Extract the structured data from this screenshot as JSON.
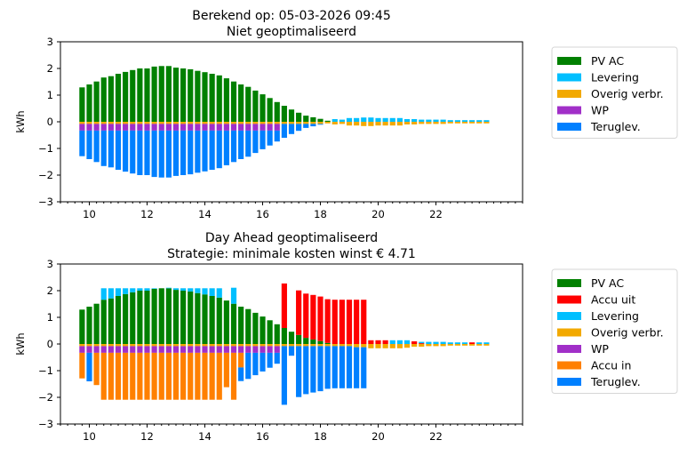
{
  "colors": {
    "PV AC": "#008000",
    "Accu uit": "#ff0000",
    "Levering": "#00bfff",
    "Overig verbr.": "#f2a900",
    "WP": "#a12fc8",
    "Accu in": "#ff8000",
    "Teruglev.": "#0080ff"
  },
  "chart_data": [
    {
      "type": "bar",
      "stacked": true,
      "title": "Berekend op: 05-03-2026 09:45",
      "subtitle": "Niet geoptimaliseerd",
      "xlabel": "",
      "ylabel": "kWh",
      "xlim": [
        9,
        25
      ],
      "ylim": [
        -3,
        3
      ],
      "xticks": [
        10,
        12,
        14,
        16,
        18,
        20,
        22
      ],
      "yticks": [
        -3,
        -2,
        -1,
        0,
        1,
        2,
        3
      ],
      "grid": false,
      "legend_placement": "outside-right-top",
      "x": [
        9.75,
        10,
        10.25,
        10.5,
        10.75,
        11,
        11.25,
        11.5,
        11.75,
        12,
        12.25,
        12.5,
        12.75,
        13,
        13.25,
        13.5,
        13.75,
        14,
        14.25,
        14.5,
        14.75,
        15,
        15.25,
        15.5,
        15.75,
        16,
        16.25,
        16.5,
        16.75,
        17,
        17.25,
        17.5,
        17.75,
        18,
        18.25,
        18.5,
        18.75,
        19,
        19.25,
        19.5,
        19.75,
        20,
        20.25,
        20.5,
        20.75,
        21,
        21.25,
        21.5,
        21.75,
        22,
        22.25,
        22.5,
        22.75,
        23,
        23.25,
        23.5,
        23.75
      ],
      "series": [
        {
          "name": "PV AC",
          "values": [
            1.29,
            1.4,
            1.51,
            1.66,
            1.71,
            1.8,
            1.87,
            1.94,
            2.0,
            2.0,
            2.07,
            2.09,
            2.09,
            2.03,
            2.0,
            1.97,
            1.91,
            1.86,
            1.8,
            1.74,
            1.63,
            1.51,
            1.4,
            1.31,
            1.17,
            1.03,
            0.89,
            0.74,
            0.6,
            0.46,
            0.34,
            0.23,
            0.17,
            0.11,
            0.04,
            0,
            0,
            0,
            0,
            0,
            0,
            0,
            0,
            0,
            0,
            0,
            0,
            0,
            0,
            0,
            0,
            0,
            0,
            0,
            0,
            0,
            0
          ]
        },
        {
          "name": "Levering",
          "values": [
            0,
            0,
            0,
            0,
            0,
            0,
            0,
            0,
            0,
            0,
            0,
            0,
            0,
            0,
            0,
            0,
            0,
            0,
            0,
            0,
            0,
            0,
            0,
            0,
            0,
            0,
            0,
            0,
            0,
            0,
            0,
            0,
            0,
            0,
            0,
            0.1,
            0.08,
            0.14,
            0.14,
            0.16,
            0.16,
            0.14,
            0.14,
            0.14,
            0.14,
            0.1,
            0.1,
            0.08,
            0.08,
            0.08,
            0.08,
            0.06,
            0.06,
            0.06,
            0.06,
            0.06,
            0.06
          ]
        },
        {
          "name": "Overig verbr.",
          "values": [
            -0.08,
            -0.08,
            -0.08,
            -0.08,
            -0.08,
            -0.08,
            -0.08,
            -0.08,
            -0.08,
            -0.08,
            -0.08,
            -0.08,
            -0.08,
            -0.08,
            -0.08,
            -0.08,
            -0.08,
            -0.08,
            -0.08,
            -0.08,
            -0.08,
            -0.08,
            -0.08,
            -0.08,
            -0.08,
            -0.08,
            -0.08,
            -0.08,
            -0.08,
            -0.08,
            -0.08,
            -0.08,
            -0.08,
            -0.08,
            -0.06,
            -0.1,
            -0.08,
            -0.14,
            -0.14,
            -0.16,
            -0.16,
            -0.14,
            -0.14,
            -0.14,
            -0.14,
            -0.1,
            -0.1,
            -0.08,
            -0.08,
            -0.08,
            -0.08,
            -0.06,
            -0.06,
            -0.06,
            -0.06,
            -0.06,
            -0.06
          ]
        },
        {
          "name": "WP",
          "values": [
            -0.25,
            -0.25,
            -0.25,
            -0.25,
            -0.25,
            -0.25,
            -0.25,
            -0.25,
            -0.25,
            -0.25,
            -0.25,
            -0.25,
            -0.25,
            -0.25,
            -0.25,
            -0.25,
            -0.25,
            -0.25,
            -0.25,
            -0.25,
            -0.25,
            -0.25,
            -0.25,
            -0.25,
            -0.25,
            -0.25,
            -0.25,
            -0.25,
            0,
            0,
            0,
            0,
            0,
            0,
            0,
            0,
            0,
            0,
            0,
            0,
            0,
            0,
            0,
            0,
            0,
            0,
            0,
            0,
            0,
            0,
            0,
            0,
            0,
            0,
            0,
            0,
            0
          ]
        },
        {
          "name": "Teruglev.",
          "values": [
            -0.96,
            -1.07,
            -1.18,
            -1.33,
            -1.38,
            -1.47,
            -1.54,
            -1.61,
            -1.67,
            -1.67,
            -1.74,
            -1.76,
            -1.76,
            -1.7,
            -1.67,
            -1.64,
            -1.58,
            -1.53,
            -1.47,
            -1.41,
            -1.3,
            -1.18,
            -1.07,
            -0.98,
            -0.84,
            -0.7,
            -0.56,
            -0.41,
            -0.52,
            -0.38,
            -0.26,
            -0.15,
            -0.09,
            -0.03,
            0,
            0,
            0,
            0,
            0,
            0,
            0,
            0,
            0,
            0,
            0,
            0,
            0,
            0,
            0,
            0,
            0,
            0,
            0,
            0,
            0,
            0,
            0
          ]
        }
      ]
    },
    {
      "type": "bar",
      "stacked": true,
      "title": "Day Ahead geoptimaliseerd",
      "subtitle": "Strategie: minimale kosten winst € 4.71",
      "xlabel": "",
      "ylabel": "kWh",
      "xlim": [
        9,
        25
      ],
      "ylim": [
        -3,
        3
      ],
      "xticks": [
        10,
        12,
        14,
        16,
        18,
        20,
        22
      ],
      "yticks": [
        -3,
        -2,
        -1,
        0,
        1,
        2,
        3
      ],
      "grid": false,
      "legend_placement": "outside-right-top",
      "x": [
        9.75,
        10,
        10.25,
        10.5,
        10.75,
        11,
        11.25,
        11.5,
        11.75,
        12,
        12.25,
        12.5,
        12.75,
        13,
        13.25,
        13.5,
        13.75,
        14,
        14.25,
        14.5,
        14.75,
        15,
        15.25,
        15.5,
        15.75,
        16,
        16.25,
        16.5,
        16.75,
        17,
        17.25,
        17.5,
        17.75,
        18,
        18.25,
        18.5,
        18.75,
        19,
        19.25,
        19.5,
        19.75,
        20,
        20.25,
        20.5,
        20.75,
        21,
        21.25,
        21.5,
        21.75,
        22,
        22.25,
        22.5,
        22.75,
        23,
        23.25,
        23.5,
        23.75
      ],
      "series": [
        {
          "name": "PV AC",
          "values": [
            1.29,
            1.4,
            1.51,
            1.66,
            1.71,
            1.8,
            1.87,
            1.94,
            2.0,
            2.0,
            2.07,
            2.09,
            2.09,
            2.03,
            2.0,
            1.97,
            1.91,
            1.86,
            1.8,
            1.74,
            1.63,
            1.51,
            1.4,
            1.31,
            1.17,
            1.03,
            0.89,
            0.74,
            0.6,
            0.46,
            0.34,
            0.23,
            0.17,
            0.11,
            0.04,
            0,
            0,
            0,
            0,
            0,
            0,
            0,
            0,
            0,
            0,
            0,
            0,
            0,
            0,
            0,
            0,
            0,
            0,
            0,
            0,
            0,
            0
          ]
        },
        {
          "name": "Accu uit",
          "values": [
            0,
            0,
            0,
            0,
            0,
            0,
            0,
            0,
            0,
            0,
            0,
            0,
            0,
            0,
            0,
            0,
            0,
            0,
            0,
            0,
            0,
            0,
            0,
            0,
            0,
            0,
            0,
            0,
            1.67,
            0,
            1.67,
            1.66,
            1.67,
            1.67,
            1.64,
            1.66,
            1.66,
            1.66,
            1.66,
            1.66,
            0.14,
            0.14,
            0.14,
            0,
            0,
            0,
            0.1,
            0.03,
            0,
            0,
            0,
            0,
            0,
            0,
            0.06,
            0,
            0
          ]
        },
        {
          "name": "Levering",
          "values": [
            0,
            0,
            0,
            0.43,
            0.38,
            0.29,
            0.22,
            0.15,
            0.09,
            0.09,
            0.02,
            0,
            0.02,
            0.06,
            0.09,
            0.12,
            0.18,
            0.23,
            0.29,
            0.35,
            0,
            0.6,
            0,
            0,
            0,
            0,
            0,
            0,
            0,
            0,
            0,
            0,
            0,
            0,
            0,
            0,
            0,
            0,
            0,
            0,
            0,
            0,
            0,
            0.14,
            0.14,
            0.14,
            0,
            0.05,
            0.08,
            0.08,
            0.08,
            0.06,
            0.06,
            0.06,
            0,
            0.06,
            0.06
          ]
        },
        {
          "name": "Overig verbr.",
          "values": [
            -0.08,
            -0.08,
            -0.08,
            -0.08,
            -0.08,
            -0.08,
            -0.08,
            -0.08,
            -0.08,
            -0.08,
            -0.08,
            -0.08,
            -0.08,
            -0.08,
            -0.08,
            -0.08,
            -0.08,
            -0.08,
            -0.08,
            -0.08,
            -0.08,
            -0.08,
            -0.08,
            -0.08,
            -0.08,
            -0.08,
            -0.08,
            -0.08,
            -0.08,
            -0.08,
            -0.08,
            -0.08,
            -0.08,
            -0.08,
            -0.08,
            -0.08,
            -0.08,
            -0.08,
            -0.12,
            -0.12,
            -0.16,
            -0.16,
            -0.16,
            -0.16,
            -0.16,
            -0.14,
            -0.1,
            -0.1,
            -0.08,
            -0.08,
            -0.08,
            -0.06,
            -0.06,
            -0.06,
            -0.06,
            -0.06,
            -0.06
          ]
        },
        {
          "name": "WP",
          "values": [
            -0.25,
            -0.25,
            -0.25,
            -0.25,
            -0.25,
            -0.25,
            -0.25,
            -0.25,
            -0.25,
            -0.25,
            -0.25,
            -0.25,
            -0.25,
            -0.25,
            -0.25,
            -0.25,
            -0.25,
            -0.25,
            -0.25,
            -0.25,
            -0.25,
            -0.25,
            -0.25,
            -0.25,
            -0.25,
            -0.25,
            -0.25,
            -0.25,
            0,
            0,
            0,
            0,
            0,
            0,
            0,
            0,
            0,
            0,
            0,
            0,
            0,
            0,
            0,
            0,
            0,
            0,
            0,
            0,
            0,
            0,
            0,
            0,
            0,
            0,
            0,
            0,
            0
          ]
        },
        {
          "name": "Accu in",
          "values": [
            -0.96,
            0,
            -1.21,
            -1.76,
            -1.76,
            -1.76,
            -1.76,
            -1.76,
            -1.76,
            -1.76,
            -1.76,
            -1.76,
            -1.76,
            -1.76,
            -1.76,
            -1.76,
            -1.76,
            -1.76,
            -1.76,
            -1.76,
            -1.29,
            -1.76,
            -0.55,
            0,
            0,
            0,
            0,
            0,
            0,
            0,
            0,
            0,
            0,
            0,
            0,
            0,
            0,
            0,
            0,
            0,
            0,
            0,
            0,
            0,
            0,
            0,
            0,
            0,
            0,
            0,
            0,
            0,
            0,
            0,
            0,
            0,
            0
          ]
        },
        {
          "name": "Teruglev.",
          "values": [
            0,
            -1.07,
            0,
            0,
            0,
            0,
            0,
            0,
            0,
            0,
            0,
            0,
            0,
            0,
            0,
            0,
            0,
            0,
            0,
            0,
            0,
            0,
            -0.51,
            -0.98,
            -0.84,
            -0.7,
            -0.56,
            -0.41,
            -2.2,
            -0.36,
            -1.91,
            -1.8,
            -1.74,
            -1.69,
            -1.6,
            -1.58,
            -1.58,
            -1.58,
            -1.54,
            -1.54,
            0,
            0,
            0,
            0,
            0,
            0,
            0,
            0,
            0,
            0,
            0,
            0,
            0,
            0,
            0,
            0,
            0
          ]
        }
      ]
    }
  ]
}
